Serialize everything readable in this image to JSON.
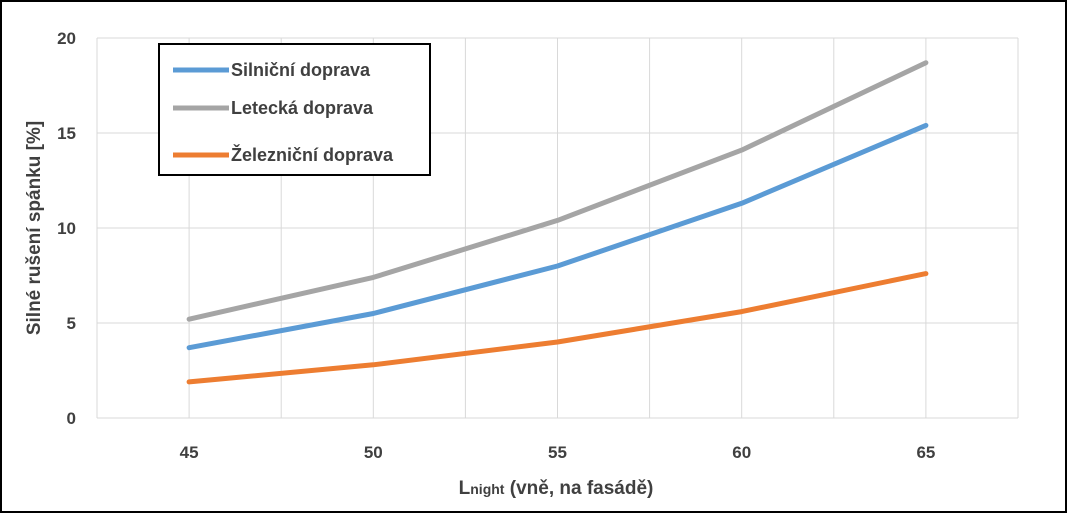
{
  "chart_data": {
    "type": "line",
    "title": "",
    "xlabel_main": "L",
    "xlabel_sub": "night",
    "xlabel_rest": " (vně, na fasádě)",
    "ylabel": "Silné rušení spánku [%]",
    "x": [
      45,
      50,
      55,
      60,
      65
    ],
    "xlim": [
      42.5,
      67.5
    ],
    "ylim": [
      0,
      20
    ],
    "yticks": [
      0,
      5,
      10,
      15,
      20
    ],
    "grid": true,
    "legend_position": "top-left",
    "series": [
      {
        "name": "Silniční doprava",
        "color": "#5b9bd5",
        "values": [
          3.7,
          5.5,
          8.0,
          11.3,
          15.4
        ]
      },
      {
        "name": "Letecká doprava",
        "color": "#a5a5a5",
        "values": [
          5.2,
          7.4,
          10.4,
          14.1,
          18.7
        ]
      },
      {
        "name": "Železniční doprava",
        "color": "#ed7d31",
        "values": [
          1.9,
          2.8,
          4.0,
          5.6,
          7.6
        ]
      }
    ]
  }
}
